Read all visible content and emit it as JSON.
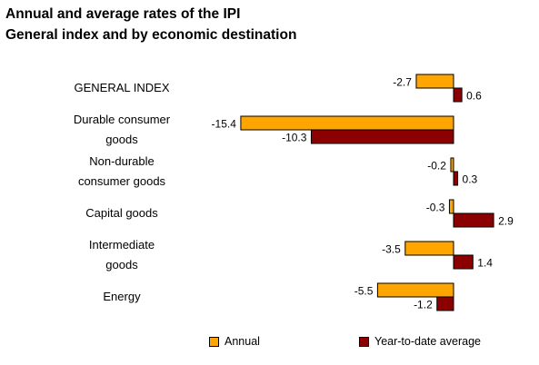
{
  "title_line1": "Annual and average rates of the IPI",
  "title_line2": "General index and by economic destination",
  "colors": {
    "annual": "#FFA500",
    "ytd": "#8B0000"
  },
  "chart_data": {
    "type": "bar",
    "orientation": "horizontal",
    "categories": [
      [
        "GENERAL INDEX"
      ],
      [
        "Durable consumer",
        "goods"
      ],
      [
        "Non-durable",
        "consumer goods"
      ],
      [
        "Capital goods"
      ],
      [
        "Intermediate",
        "goods"
      ],
      [
        "Energy"
      ]
    ],
    "series": [
      {
        "name": "Annual",
        "values": [
          -2.7,
          -15.4,
          -0.2,
          -0.3,
          -3.5,
          -5.5
        ]
      },
      {
        "name": "Year-to-date average",
        "values": [
          0.6,
          -10.3,
          0.3,
          2.9,
          1.4,
          -1.2
        ]
      }
    ],
    "xlim": [
      -15.4,
      2.9
    ],
    "grid": false,
    "legend_position": "bottom",
    "value_labels": true
  },
  "legend": {
    "annual": "Annual",
    "ytd": "Year-to-date average"
  }
}
